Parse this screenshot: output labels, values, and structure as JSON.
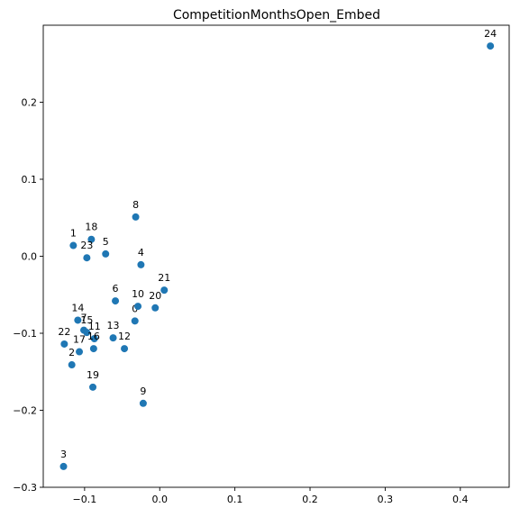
{
  "chart_data": {
    "type": "scatter",
    "title": "CompetitionMonthsOpen_Embed",
    "xlabel": "",
    "ylabel": "",
    "xlim": [
      -0.155,
      0.465
    ],
    "ylim": [
      -0.3,
      0.3
    ],
    "xticks": [
      -0.1,
      0.0,
      0.1,
      0.2,
      0.3,
      0.4
    ],
    "xtick_labels": [
      "−0.1",
      "0.0",
      "0.1",
      "0.2",
      "0.3",
      "0.4"
    ],
    "yticks": [
      -0.3,
      -0.2,
      -0.1,
      0.0,
      0.1,
      0.2
    ],
    "ytick_labels": [
      "−0.3",
      "−0.2",
      "−0.1",
      "0.0",
      "0.1",
      "0.2"
    ],
    "grid": false,
    "marker_color": "#1f77b4",
    "points": [
      {
        "label": "0",
        "x": -0.033,
        "y": -0.084
      },
      {
        "label": "1",
        "x": -0.115,
        "y": 0.014
      },
      {
        "label": "2",
        "x": -0.117,
        "y": -0.141
      },
      {
        "label": "3",
        "x": -0.128,
        "y": -0.273
      },
      {
        "label": "4",
        "x": -0.025,
        "y": -0.011
      },
      {
        "label": "5",
        "x": -0.072,
        "y": 0.003
      },
      {
        "label": "6",
        "x": -0.059,
        "y": -0.058
      },
      {
        "label": "7",
        "x": -0.101,
        "y": -0.096
      },
      {
        "label": "8",
        "x": -0.032,
        "y": 0.051
      },
      {
        "label": "9",
        "x": -0.022,
        "y": -0.191
      },
      {
        "label": "10",
        "x": -0.029,
        "y": -0.065
      },
      {
        "label": "11",
        "x": -0.087,
        "y": -0.107
      },
      {
        "label": "12",
        "x": -0.047,
        "y": -0.12
      },
      {
        "label": "13",
        "x": -0.062,
        "y": -0.106
      },
      {
        "label": "14",
        "x": -0.109,
        "y": -0.083
      },
      {
        "label": "15",
        "x": -0.097,
        "y": -0.099
      },
      {
        "label": "16",
        "x": -0.088,
        "y": -0.12
      },
      {
        "label": "17",
        "x": -0.107,
        "y": -0.124
      },
      {
        "label": "18",
        "x": -0.091,
        "y": 0.022
      },
      {
        "label": "19",
        "x": -0.089,
        "y": -0.17
      },
      {
        "label": "20",
        "x": -0.006,
        "y": -0.067
      },
      {
        "label": "21",
        "x": 0.006,
        "y": -0.044
      },
      {
        "label": "22",
        "x": -0.127,
        "y": -0.114
      },
      {
        "label": "23",
        "x": -0.097,
        "y": -0.002
      },
      {
        "label": "24",
        "x": 0.44,
        "y": 0.273
      }
    ]
  }
}
